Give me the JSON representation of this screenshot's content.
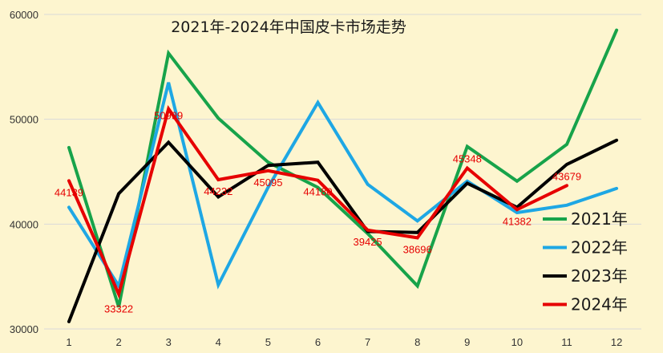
{
  "chart_data": {
    "type": "line",
    "title": "2021年-2024年中国皮卡市场走势",
    "xlabel": "",
    "ylabel": "",
    "x": [
      "1",
      "2",
      "3",
      "4",
      "5",
      "6",
      "7",
      "8",
      "9",
      "10",
      "11",
      "12"
    ],
    "ylim": [
      30000,
      60000
    ],
    "yticks": [
      "30000",
      "40000",
      "50000",
      "60000"
    ],
    "ytick_values": [
      30000,
      40000,
      50000,
      60000
    ],
    "grid": "horizontal",
    "legend_position": "right",
    "background": "#fdf5cf",
    "series": [
      {
        "name": "2021年",
        "color": "#17a34a",
        "values": [
          47300,
          32100,
          56300,
          50100,
          45900,
          43500,
          39100,
          34100,
          47400,
          44100,
          47600,
          58500
        ]
      },
      {
        "name": "2022年",
        "color": "#1ea7e4",
        "values": [
          41600,
          34100,
          53500,
          34200,
          43500,
          51600,
          43800,
          40300,
          44100,
          41100,
          41800,
          43400
        ]
      },
      {
        "name": "2023年",
        "color": "#000000",
        "values": [
          30700,
          42900,
          47800,
          42600,
          45600,
          45900,
          39300,
          39200,
          43900,
          41600,
          45700,
          48000
        ]
      },
      {
        "name": "2024年",
        "color": "#e60000",
        "values": [
          44139,
          33322,
          50999,
          44232,
          45095,
          44180,
          39425,
          38696,
          45348,
          41382,
          43679,
          null
        ]
      }
    ],
    "data_labels": [
      {
        "series": "2024年",
        "index": 0,
        "text": "44139"
      },
      {
        "series": "2024年",
        "index": 1,
        "text": "33322"
      },
      {
        "series": "2024年",
        "index": 2,
        "text": "50999"
      },
      {
        "series": "2024年",
        "index": 3,
        "text": "44232"
      },
      {
        "series": "2024年",
        "index": 4,
        "text": "45095"
      },
      {
        "series": "2024年",
        "index": 5,
        "text": "44180"
      },
      {
        "series": "2024年",
        "index": 6,
        "text": "39425"
      },
      {
        "series": "2024年",
        "index": 7,
        "text": "38696"
      },
      {
        "series": "2024年",
        "index": 8,
        "text": "45348"
      },
      {
        "series": "2024年",
        "index": 9,
        "text": "41382"
      },
      {
        "series": "2024年",
        "index": 10,
        "text": "43679"
      }
    ],
    "data_label_color": "#e60000"
  }
}
